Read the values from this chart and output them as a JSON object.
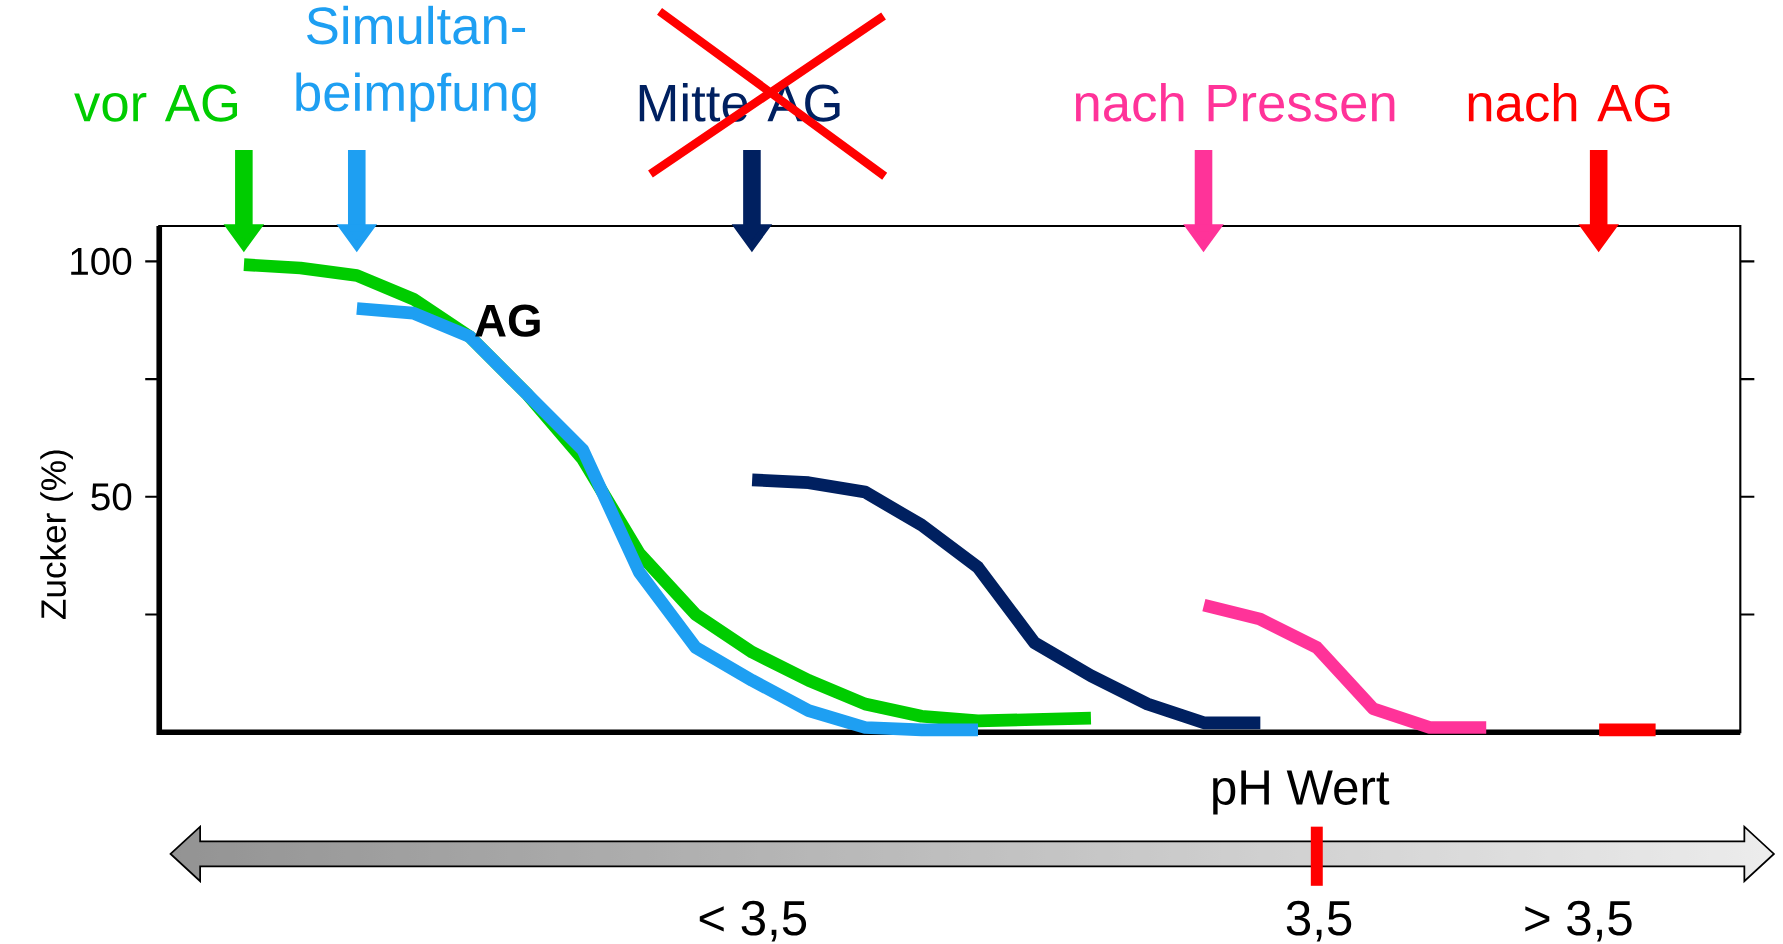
{
  "chart_data": {
    "type": "line",
    "ylabel": "Zucker (%)",
    "categories": [
      null,
      null,
      null,
      null,
      null,
      null,
      null,
      null,
      null,
      null,
      null,
      null,
      null,
      null,
      null,
      null,
      null,
      null,
      null,
      null,
      null,
      null,
      null,
      null,
      null,
      null,
      null,
      null
    ],
    "ylim": [
      0,
      107.5
    ],
    "yticks": [
      {
        "value": 25,
        "label": null
      },
      50,
      {
        "value": 75,
        "label": null
      },
      100
    ],
    "tick_labels": "y",
    "series": [
      {
        "name": "vor AG",
        "color": "#00CC00",
        "values": [
          null,
          99.3,
          98.6,
          97,
          92,
          84,
          72,
          58,
          38,
          25,
          17,
          11,
          6,
          3.4,
          2.4,
          2.7,
          3,
          null,
          null,
          null,
          null,
          null,
          null,
          null,
          null,
          null,
          null,
          null
        ]
      },
      {
        "name": "Simultan-beimpfung",
        "color": "#1E9FF2",
        "values": [
          null,
          null,
          null,
          90,
          89,
          84,
          72,
          60,
          34,
          18,
          11,
          4.6,
          1,
          0.5,
          0.5,
          null,
          null,
          null,
          null,
          null,
          null,
          null,
          null,
          null,
          null,
          null,
          null,
          null
        ]
      },
      {
        "name": "Mitte AG",
        "color": "#002060",
        "values": [
          null,
          null,
          null,
          null,
          null,
          null,
          null,
          null,
          null,
          null,
          53.6,
          53,
          51,
          44,
          35,
          19,
          12,
          6,
          2,
          2,
          null,
          null,
          null,
          null,
          null,
          null,
          null,
          null
        ]
      },
      {
        "name": "nach Pressen",
        "color": "#FF3399",
        "values": [
          null,
          null,
          null,
          null,
          null,
          null,
          null,
          null,
          null,
          null,
          null,
          null,
          null,
          null,
          null,
          null,
          null,
          null,
          27,
          24,
          18,
          5,
          1,
          1,
          null,
          null,
          null,
          null
        ]
      },
      {
        "name": "nach AG",
        "color": "#FF0000",
        "values": [
          null,
          null,
          null,
          null,
          null,
          null,
          null,
          null,
          null,
          null,
          null,
          null,
          null,
          null,
          null,
          null,
          null,
          null,
          null,
          null,
          null,
          null,
          null,
          null,
          null,
          0.5,
          0.5,
          null
        ]
      }
    ],
    "annotations": [
      "AG",
      "pH Wert",
      "< 3,5",
      "3,5",
      "> 3,5"
    ]
  }
}
